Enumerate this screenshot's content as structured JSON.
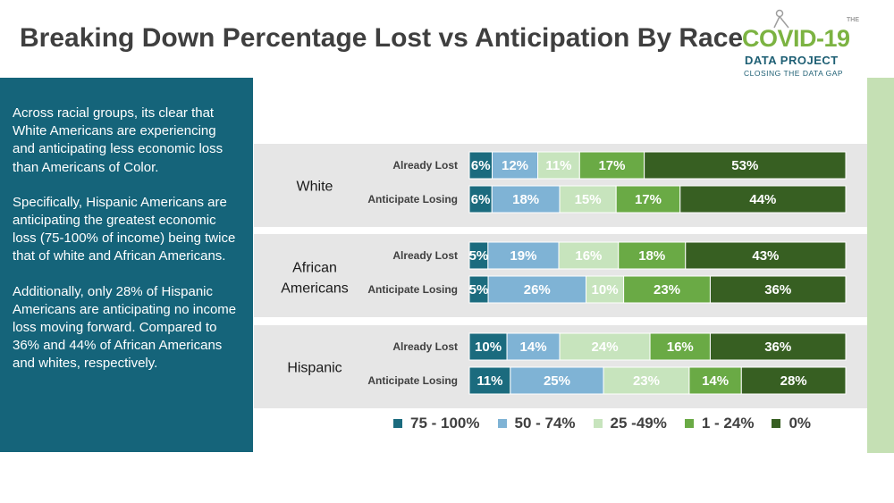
{
  "header": {
    "title": "Breaking Down Percentage Lost vs Anticipation By Race"
  },
  "logo": {
    "the": "THE",
    "name": "COVID-19",
    "line2": "DATA PROJECT",
    "tagline": "CLOSING THE DATA GAP"
  },
  "sidebar": {
    "paragraphs": [
      "Across racial groups, its clear that White Americans are experiencing and anticipating less economic loss than Americans of Color.",
      "Specifically, Hispanic Americans are anticipating the greatest economic loss (75-100% of income) being twice that of white and African Americans.",
      "Additionally, only 28% of Hispanic Americans are anticipating no income loss moving forward. Compared to 36% and 44% of African Americans and whites, respectively."
    ]
  },
  "colors": {
    "accent_teal": "#15647a",
    "band_gray": "#e6e6e6",
    "stripe_green": "#c5e0b4"
  },
  "chart_data": {
    "type": "bar",
    "orientation": "horizontal",
    "stacked": true,
    "groups": [
      {
        "name": "White",
        "bars": [
          {
            "label": "Already Lost",
            "values": [
              6,
              12,
              11,
              17,
              53
            ]
          },
          {
            "label": "Anticipate Losing",
            "values": [
              6,
              18,
              15,
              17,
              44
            ]
          }
        ]
      },
      {
        "name": "African Americans",
        "bars": [
          {
            "label": "Already Lost",
            "values": [
              5,
              19,
              16,
              18,
              43
            ]
          },
          {
            "label": "Anticipate Losing",
            "values": [
              5,
              26,
              10,
              23,
              36
            ]
          }
        ]
      },
      {
        "name": "Hispanic",
        "bars": [
          {
            "label": "Already Lost",
            "values": [
              10,
              14,
              24,
              16,
              36
            ]
          },
          {
            "label": "Anticipate Losing",
            "values": [
              11,
              25,
              23,
              14,
              28
            ]
          }
        ]
      }
    ],
    "series": [
      {
        "name": "75 - 100%",
        "color": "#1b6b7e"
      },
      {
        "name": "50 - 74%",
        "color": "#7fb3d5"
      },
      {
        "name": "25 -49%",
        "color": "#c7e4bd"
      },
      {
        "name": "1 - 24%",
        "color": "#6aaa45"
      },
      {
        "name": "0%",
        "color": "#375f22"
      }
    ],
    "value_suffix": "%",
    "xlim": [
      0,
      100
    ],
    "legend_position": "bottom",
    "grid": false
  }
}
